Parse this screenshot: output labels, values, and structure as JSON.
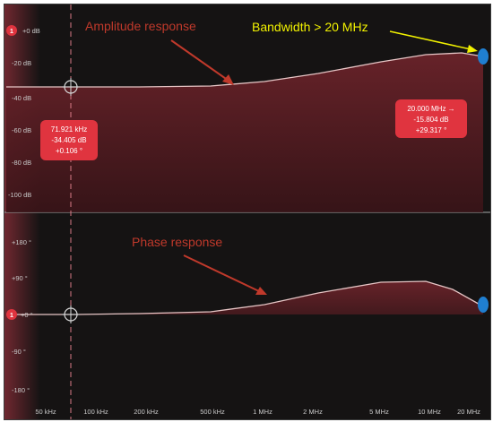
{
  "colors": {
    "background": "#151313",
    "curve_fill": "#5a1f24",
    "curve_line": "#e6c5c5",
    "tag_bg": "#e0343f",
    "marker_blue": "#1f7fd1",
    "annotation_red": "#c0392b",
    "annotation_yellow": "#f2f200"
  },
  "annotations": {
    "amplitude_label": "Amplitude response",
    "bandwidth_label": "Bandwidth > 20 MHz",
    "phase_label": "Phase response"
  },
  "amplitude_panel": {
    "badge": "1",
    "y_ticks": [
      "+0 dB",
      "-20 dB",
      "-40 dB",
      "-60 dB",
      "-80 dB",
      "-100 dB"
    ]
  },
  "phase_panel": {
    "badge": "1",
    "y_ticks": [
      "+180 °",
      "+90 °",
      "+0 °",
      "-90 °",
      "-180 °"
    ]
  },
  "x_ticks": [
    "50 kHz",
    "100 kHz",
    "200 kHz",
    "500 kHz",
    "1 MHz",
    "2 MHz",
    "5 MHz",
    "10 MHz",
    "20 MHz"
  ],
  "cursor_readout": {
    "line1": "71.921 kHz",
    "line2": "-34.405 dB",
    "line3": "+0.106 °"
  },
  "end_readout": {
    "line1": "20.000 MHz →",
    "line2": "-15.804 dB",
    "line3": "+29.317 °"
  },
  "chart_data": [
    {
      "type": "line",
      "name_hint": "amplitude",
      "x_scale": "log",
      "x": [
        "50 kHz",
        "100 kHz",
        "200 kHz",
        "500 kHz",
        "1 MHz",
        "2 MHz",
        "5 MHz",
        "10 MHz",
        "20 MHz"
      ],
      "y": [
        -34.4,
        -34.4,
        -34.3,
        -33.5,
        -31,
        -26,
        -20,
        -16,
        -15.8
      ],
      "ylabel": "dB",
      "ylim": [
        -110,
        5
      ],
      "grid": false
    },
    {
      "type": "line",
      "name_hint": "phase",
      "x_scale": "log",
      "x": [
        "50 kHz",
        "100 kHz",
        "200 kHz",
        "500 kHz",
        "1 MHz",
        "2 MHz",
        "5 MHz",
        "10 MHz",
        "20 MHz"
      ],
      "y": [
        0,
        0.2,
        1.5,
        6,
        18,
        38,
        58,
        55,
        29.3
      ],
      "ylabel": "°",
      "ylim": [
        -200,
        200
      ],
      "grid": false
    }
  ]
}
